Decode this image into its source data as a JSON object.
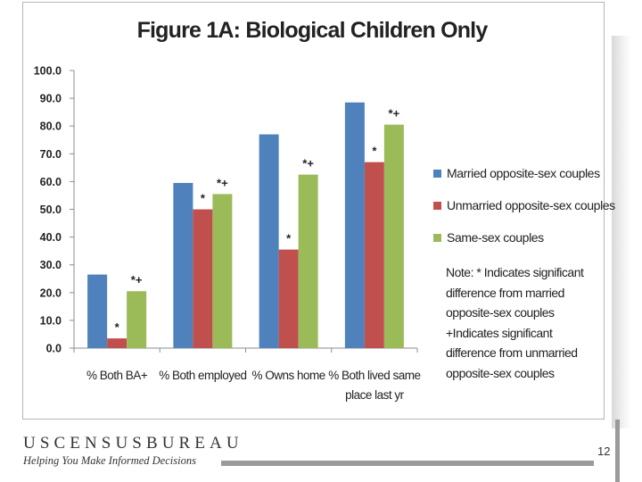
{
  "chart_data": {
    "type": "bar",
    "title": "Figure 1A: Biological Children Only",
    "categories": [
      "% Both BA+",
      "% Both employed",
      "% Owns home",
      "% Both lived same place last yr"
    ],
    "category_lines": [
      [
        "% Both BA+"
      ],
      [
        "% Both employed"
      ],
      [
        "% Owns home"
      ],
      [
        "% Both lived same",
        "place last yr"
      ]
    ],
    "series": [
      {
        "name": "Married opposite-sex couples",
        "color": "#4f81bd",
        "values": [
          26.5,
          59.5,
          77.0,
          88.5
        ]
      },
      {
        "name": "Unmarried opposite-sex couples",
        "color": "#c0504d",
        "values": [
          3.5,
          50.0,
          35.5,
          67.0
        ]
      },
      {
        "name": "Same-sex couples",
        "color": "#9bbb59",
        "values": [
          20.5,
          55.5,
          62.5,
          80.5
        ]
      }
    ],
    "markers": [
      [
        "",
        "*",
        "*+"
      ],
      [
        "",
        "*",
        "*+"
      ],
      [
        "",
        "*",
        "*+"
      ],
      [
        "",
        "*",
        "*+"
      ]
    ],
    "yticks": [
      "0.0",
      "10.0",
      "20.0",
      "30.0",
      "40.0",
      "50.0",
      "60.0",
      "70.0",
      "80.0",
      "90.0",
      "100.0"
    ],
    "ylim": [
      0,
      100
    ],
    "xlabel": "",
    "ylabel": "",
    "legend_position": "right",
    "grid": false
  },
  "note_lines": [
    "Note: * Indicates significant",
    "difference from married",
    "opposite-sex couples",
    "+Indicates significant",
    "difference from unmarried",
    "opposite-sex couples"
  ],
  "footer": {
    "brand": "USCENSUSBUREAU",
    "tagline": "Helping You Make Informed Decisions",
    "page_number": "12"
  }
}
